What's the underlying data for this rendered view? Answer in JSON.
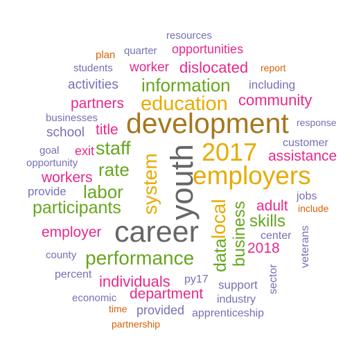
{
  "colors": {
    "gray": "#666666",
    "olive": "#a6761d",
    "gold": "#e6ab02",
    "green": "#66a61e",
    "magenta": "#e7298a",
    "purple": "#7570b3",
    "orange": "#d95f02"
  },
  "words": [
    {
      "id": "resources",
      "text": "resources",
      "color": "purple"
    },
    {
      "id": "plan",
      "text": "plan",
      "color": "orange"
    },
    {
      "id": "quarter",
      "text": "quarter",
      "color": "purple"
    },
    {
      "id": "opportunities",
      "text": "opportunities",
      "color": "magenta"
    },
    {
      "id": "students",
      "text": "students",
      "color": "purple"
    },
    {
      "id": "worker",
      "text": "worker",
      "color": "magenta"
    },
    {
      "id": "dislocated",
      "text": "dislocated",
      "color": "magenta"
    },
    {
      "id": "report",
      "text": "report",
      "color": "orange"
    },
    {
      "id": "activities",
      "text": "activities",
      "color": "purple"
    },
    {
      "id": "information",
      "text": "information",
      "color": "green"
    },
    {
      "id": "including",
      "text": "including",
      "color": "purple"
    },
    {
      "id": "partners",
      "text": "partners",
      "color": "magenta"
    },
    {
      "id": "education",
      "text": "education",
      "color": "gold"
    },
    {
      "id": "community",
      "text": "community",
      "color": "magenta"
    },
    {
      "id": "businesses",
      "text": "businesses",
      "color": "purple"
    },
    {
      "id": "development",
      "text": "development",
      "color": "olive"
    },
    {
      "id": "title",
      "text": "title",
      "color": "magenta"
    },
    {
      "id": "response",
      "text": "response",
      "color": "purple"
    },
    {
      "id": "school",
      "text": "school",
      "color": "purple"
    },
    {
      "id": "customer",
      "text": "customer",
      "color": "purple"
    },
    {
      "id": "goal",
      "text": "goal",
      "color": "purple"
    },
    {
      "id": "exit",
      "text": "exit",
      "color": "magenta"
    },
    {
      "id": "staff",
      "text": "staff",
      "color": "green"
    },
    {
      "id": "2017",
      "text": "2017",
      "color": "gold"
    },
    {
      "id": "assistance",
      "text": "assistance",
      "color": "magenta"
    },
    {
      "id": "opportunity",
      "text": "opportunity",
      "color": "purple"
    },
    {
      "id": "rate",
      "text": "rate",
      "color": "green"
    },
    {
      "id": "employers",
      "text": "employers",
      "color": "gold"
    },
    {
      "id": "workers",
      "text": "workers",
      "color": "magenta"
    },
    {
      "id": "labor",
      "text": "labor",
      "color": "green"
    },
    {
      "id": "provide",
      "text": "provide",
      "color": "purple"
    },
    {
      "id": "jobs",
      "text": "jobs",
      "color": "purple"
    },
    {
      "id": "adult",
      "text": "adult",
      "color": "magenta"
    },
    {
      "id": "include",
      "text": "include",
      "color": "orange"
    },
    {
      "id": "participants",
      "text": "participants",
      "color": "green"
    },
    {
      "id": "skills",
      "text": "skills",
      "color": "green"
    },
    {
      "id": "employer",
      "text": "employer",
      "color": "magenta"
    },
    {
      "id": "career",
      "text": "career",
      "color": "gray"
    },
    {
      "id": "center",
      "text": "center",
      "color": "purple"
    },
    {
      "id": "2018",
      "text": "2018",
      "color": "magenta"
    },
    {
      "id": "county",
      "text": "county",
      "color": "purple"
    },
    {
      "id": "performance",
      "text": "performance",
      "color": "green"
    },
    {
      "id": "percent",
      "text": "percent",
      "color": "purple"
    },
    {
      "id": "individuals",
      "text": "individuals",
      "color": "magenta"
    },
    {
      "id": "py17",
      "text": "py17",
      "color": "purple"
    },
    {
      "id": "support",
      "text": "support",
      "color": "purple"
    },
    {
      "id": "department",
      "text": "department",
      "color": "magenta"
    },
    {
      "id": "economic",
      "text": "economic",
      "color": "purple"
    },
    {
      "id": "industry",
      "text": "industry",
      "color": "purple"
    },
    {
      "id": "time",
      "text": "time",
      "color": "orange"
    },
    {
      "id": "provided",
      "text": "provided",
      "color": "purple"
    },
    {
      "id": "apprenticeship",
      "text": "apprenticeship",
      "color": "purple"
    },
    {
      "id": "partnership",
      "text": "partnership",
      "color": "orange"
    },
    {
      "id": "youth",
      "text": "youth",
      "color": "gray"
    },
    {
      "id": "system",
      "text": "system",
      "color": "gold"
    },
    {
      "id": "local",
      "text": "local",
      "color": "gold"
    },
    {
      "id": "data",
      "text": "data",
      "color": "green"
    },
    {
      "id": "business",
      "text": "business",
      "color": "green"
    },
    {
      "id": "sector",
      "text": "sector",
      "color": "purple"
    },
    {
      "id": "veterans",
      "text": "veterans",
      "color": "purple"
    }
  ]
}
